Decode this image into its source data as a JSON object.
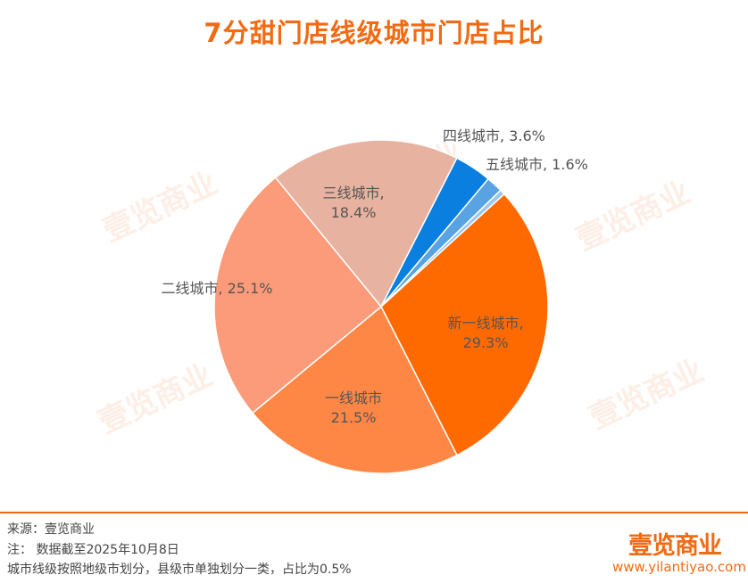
{
  "header": {
    "title": "7分甜门店线级城市门店占比"
  },
  "chart_data": {
    "type": "pie",
    "title": "7分甜门店线级城市门店占比",
    "slices": [
      {
        "label": "新一线城市",
        "value": 29.3,
        "display": "新一线城市,\n29.3%",
        "color": "#ff6a00"
      },
      {
        "label": "一线城市",
        "value": 21.5,
        "display": "一线城市\n21.5%",
        "color": "#ff8745"
      },
      {
        "label": "二线城市",
        "value": 25.1,
        "display": "二线城市, 25.1%",
        "color": "#fc9b7a"
      },
      {
        "label": "三线城市",
        "value": 18.4,
        "display": "三线城市,\n18.4%",
        "color": "#e8b2a0"
      },
      {
        "label": "四线城市",
        "value": 3.6,
        "display": "四线城市, 3.6%",
        "color": "#0a7fe0"
      },
      {
        "label": "五线城市",
        "value": 1.6,
        "display": "五线城市, 1.6%",
        "color": "#5aa3e2"
      },
      {
        "label": "",
        "value": 0.5,
        "display": "",
        "color": "#9dc8ee"
      }
    ],
    "legend": "none"
  },
  "footer": {
    "source": "来源：壹览商业",
    "note": "注：  数据截至2025年10月8日",
    "remark": "城市线级按照地级市划分，县级市单独划分一类，占比为0.5%",
    "brand": "壹览商业",
    "url": "www.yilantiyao.com"
  },
  "watermark": {
    "text": "壹览商业"
  }
}
